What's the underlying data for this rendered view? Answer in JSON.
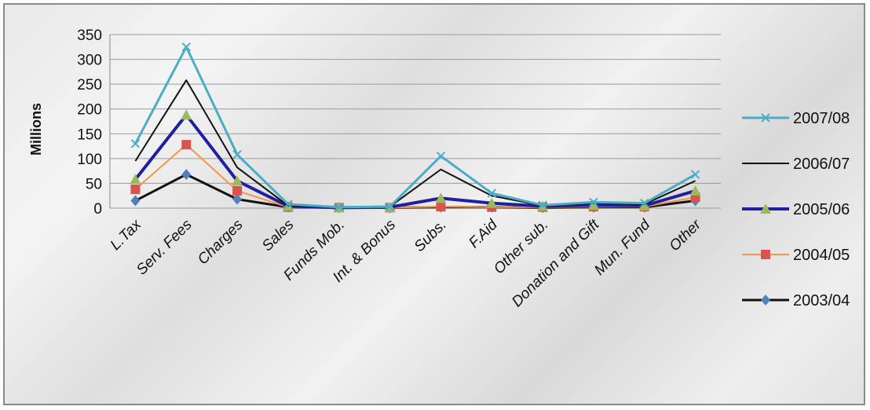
{
  "chart_data": {
    "type": "line",
    "title": "",
    "xlabel": "",
    "ylabel": "Millions",
    "ylim": [
      0,
      350
    ],
    "yticks": [
      "0",
      "50",
      "100",
      "150",
      "200",
      "250",
      "300",
      "350"
    ],
    "grid": true,
    "legend_position": "right",
    "categories": [
      "L.Tax",
      "Serv. Fees",
      "Charges",
      "Sales",
      "Funds Mob.",
      "Int. & Bonus",
      "Subs.",
      "F.Aid",
      "Other sub.",
      "Donation and Gift",
      "Mun. Fund",
      "Other"
    ],
    "series": [
      {
        "name": "2007/08",
        "color": "#4bacc6",
        "marker": "x",
        "width": 3,
        "values": [
          130,
          325,
          108,
          8,
          2,
          3,
          105,
          30,
          6,
          12,
          10,
          68
        ]
      },
      {
        "name": "2006/07",
        "color": "#111111",
        "marker": "none",
        "width": 2,
        "values": [
          95,
          258,
          82,
          5,
          2,
          3,
          78,
          25,
          5,
          10,
          8,
          55
        ]
      },
      {
        "name": "2005/06",
        "color": "#1f1fa0",
        "marker": "triangle",
        "width": 4,
        "values": [
          58,
          188,
          55,
          4,
          1,
          2,
          20,
          10,
          4,
          6,
          5,
          35
        ]
      },
      {
        "name": "2004/05",
        "color": "#f79646",
        "marker": "square",
        "width": 2,
        "values": [
          38,
          128,
          35,
          2,
          1,
          1,
          3,
          2,
          2,
          3,
          3,
          22
        ]
      },
      {
        "name": "2003/04",
        "color": "#111111",
        "marker": "diamond",
        "width": 3,
        "values": [
          15,
          68,
          18,
          2,
          1,
          1,
          2,
          2,
          1,
          2,
          2,
          15
        ]
      }
    ]
  }
}
